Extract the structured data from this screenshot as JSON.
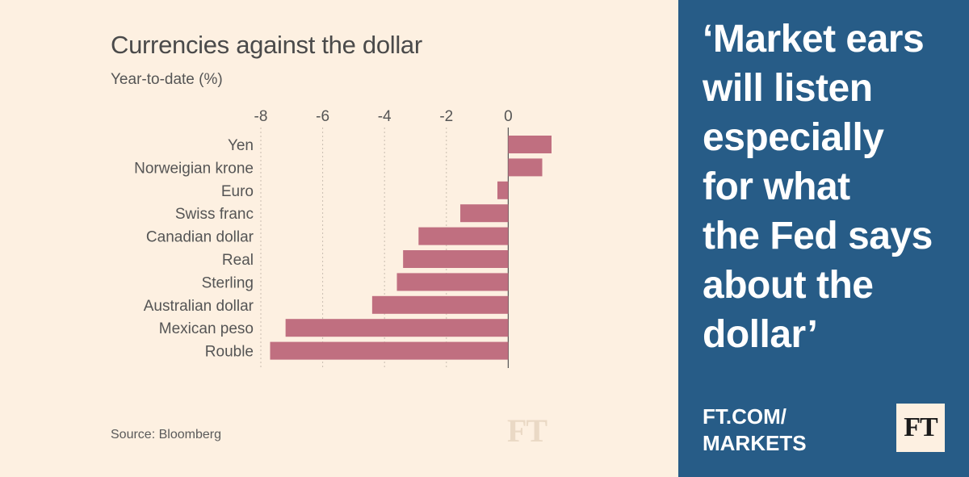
{
  "chart_data": {
    "type": "bar",
    "orientation": "horizontal",
    "title": "Currencies against the dollar",
    "subtitle": "Year-to-date (%)",
    "categories": [
      "Yen",
      "Norweigian krone",
      "Euro",
      "Swiss franc",
      "Canadian dollar",
      "Real",
      "Sterling",
      "Australian dollar",
      "Mexican peso",
      "Rouble"
    ],
    "values": [
      1.4,
      1.1,
      -0.35,
      -1.55,
      -2.9,
      -3.4,
      -3.6,
      -4.4,
      -7.2,
      -7.7
    ],
    "xlim": [
      -8,
      1.4
    ],
    "ticks": [
      -8,
      -6,
      -4,
      -2,
      0
    ],
    "tick_labels": [
      "-8",
      "-6",
      "-4",
      "-2",
      "0"
    ],
    "grid": true,
    "bar_color": "#c06f80",
    "source": "Source: Bloomberg"
  },
  "watermark": "FT",
  "quote_lines": [
    "‘Market ears",
    "will listen",
    "especially",
    "for what",
    "the Fed says",
    "about the",
    "dollar’"
  ],
  "link_lines": [
    "FT.COM/",
    "MARKETS"
  ],
  "logo": "FT",
  "colors": {
    "panel": "#275c87",
    "background": "#fdf0e1"
  }
}
